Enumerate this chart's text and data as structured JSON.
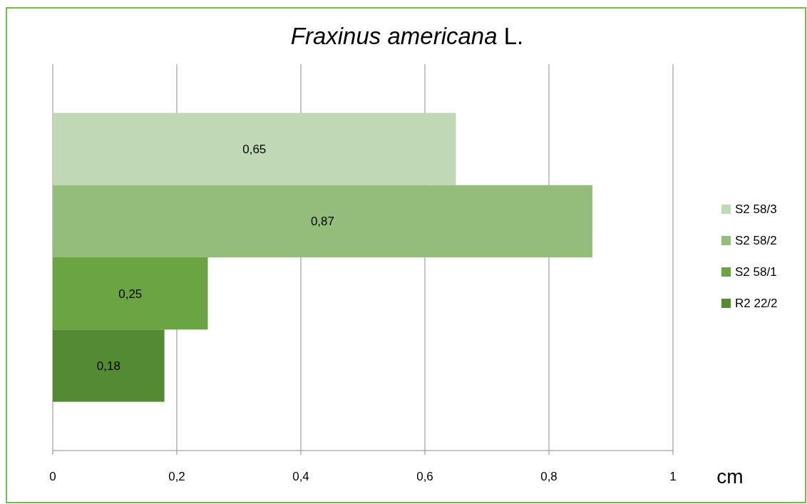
{
  "chart_data": {
    "type": "bar",
    "orientation": "horizontal",
    "title": "Fraxinus americana L.",
    "xlabel": "cm",
    "categories": [
      null
    ],
    "series": [
      {
        "name": "S2 58/3",
        "color": "#c0d8b4",
        "values": [
          0.65
        ],
        "value_labels": [
          "0,65"
        ]
      },
      {
        "name": "S2 58/2",
        "color": "#94bd7b",
        "values": [
          0.87
        ],
        "value_labels": [
          "0,87"
        ]
      },
      {
        "name": "S2 58/1",
        "color": "#6aa443",
        "values": [
          0.25
        ],
        "value_labels": [
          "0,25"
        ]
      },
      {
        "name": "R2 22/2",
        "color": "#558a35",
        "values": [
          0.18
        ],
        "value_labels": [
          "0,18"
        ]
      }
    ],
    "xlim": [
      0,
      1
    ],
    "xticks": [
      0,
      {
        "value": 0.2,
        "label": "0,2"
      },
      {
        "value": 0.4,
        "label": "0,4"
      },
      {
        "value": 0.6,
        "label": "0,6"
      },
      {
        "value": 0.8,
        "label": "0,8"
      },
      1
    ],
    "grid": "x",
    "legend": "right"
  }
}
